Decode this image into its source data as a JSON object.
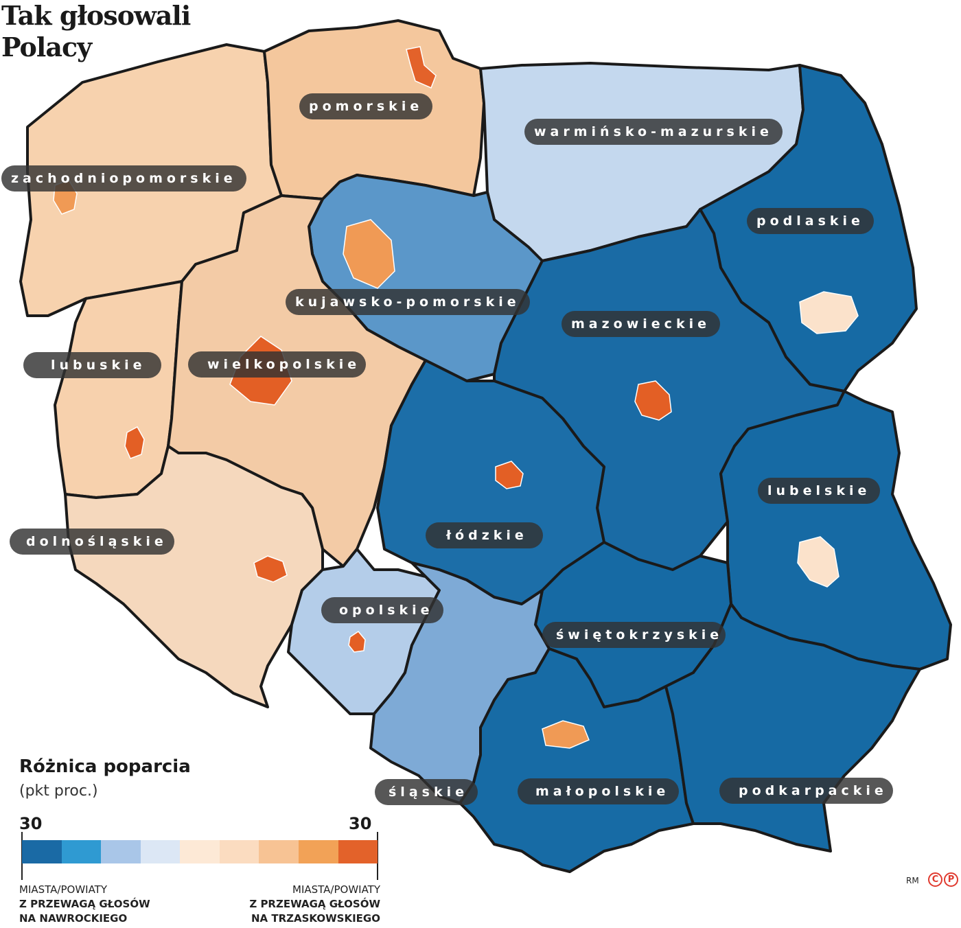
{
  "title_line1": "Tak głosowali",
  "title_line2": "Polacy",
  "regions": [
    {
      "id": "zachodniopomorskie",
      "label": "zachodniopomorskie",
      "fill": "#f7d2ae"
    },
    {
      "id": "pomorskie",
      "label": "pomorskie",
      "fill": "#f4c79d"
    },
    {
      "id": "warminsko-mazurskie",
      "label": "warmińsko-mazurskie",
      "fill": "#c4d8ee"
    },
    {
      "id": "podlaskie",
      "label": "podlaskie",
      "fill": "#166aa4"
    },
    {
      "id": "kujawsko-pomorskie",
      "label": "kujawsko-pomorskie",
      "fill": "#5b97c9"
    },
    {
      "id": "mazowieckie",
      "label": "mazowieckie",
      "fill": "#1a6ba5"
    },
    {
      "id": "lubuskie",
      "label": "lubuskie",
      "fill": "#f7d1ad"
    },
    {
      "id": "wielkopolskie",
      "label": "wielkopolskie",
      "fill": "#f3cba6"
    },
    {
      "id": "lodzkie",
      "label": "łódzkie",
      "fill": "#1c6ea8"
    },
    {
      "id": "lubelskie",
      "label": "lubelskie",
      "fill": "#166aa4"
    },
    {
      "id": "dolnoslaskie",
      "label": "dolnośląskie",
      "fill": "#f5d8bd"
    },
    {
      "id": "opolskie",
      "label": "opolskie",
      "fill": "#b4cde9"
    },
    {
      "id": "swietokrzyskie",
      "label": "świętokrzyskie",
      "fill": "#166aa4"
    },
    {
      "id": "slaskie",
      "label": "śląskie",
      "fill": "#7eaad6"
    },
    {
      "id": "malopolskie",
      "label": "małopolskie",
      "fill": "#176ba5"
    },
    {
      "id": "podkarpackie",
      "label": "podkarpackie",
      "fill": "#166aa4"
    }
  ],
  "cities": [
    {
      "name": "Gdańsk",
      "fill": "#e3622a"
    },
    {
      "name": "Szczecin",
      "fill": "#f09a55"
    },
    {
      "name": "Poznań",
      "fill": "#e35f25"
    },
    {
      "name": "Warszawa",
      "fill": "#e35f25"
    },
    {
      "name": "Łódź",
      "fill": "#e35f25"
    },
    {
      "name": "Wrocław",
      "fill": "#e35f25"
    },
    {
      "name": "Zielona Góra",
      "fill": "#e35f25"
    },
    {
      "name": "Bydgoszcz",
      "fill": "#f09a55"
    },
    {
      "name": "Kraków",
      "fill": "#f09a55"
    },
    {
      "name": "Opole",
      "fill": "#e35f25"
    },
    {
      "name": "Lublin",
      "fill": "#fbe2cb"
    },
    {
      "name": "Białystok",
      "fill": "#fbe2cb"
    }
  ],
  "legend": {
    "title": "Różnica poparcia",
    "subtitle": "(pkt proc.)",
    "left_value": "30",
    "right_value": "30",
    "colors": [
      "#1a6aa5",
      "#2f9ad2",
      "#a9c6e8",
      "#dce7f5",
      "#fde9d6",
      "#fbdcc0",
      "#f7c394",
      "#f2a257",
      "#e3622a"
    ],
    "left_caption_1": "MIASTA/POWIATY",
    "left_caption_2": "Z PRZEWAGĄ GŁOSÓW",
    "left_caption_3": "NA NAWROCKIEGO",
    "right_caption_1": "MIASTA/POWIATY",
    "right_caption_2": "Z PRZEWAGĄ GŁOSÓW",
    "right_caption_3": "NA TRZASKOWSKIEGO"
  },
  "credit": "RM",
  "logo": [
    "C",
    "P"
  ]
}
